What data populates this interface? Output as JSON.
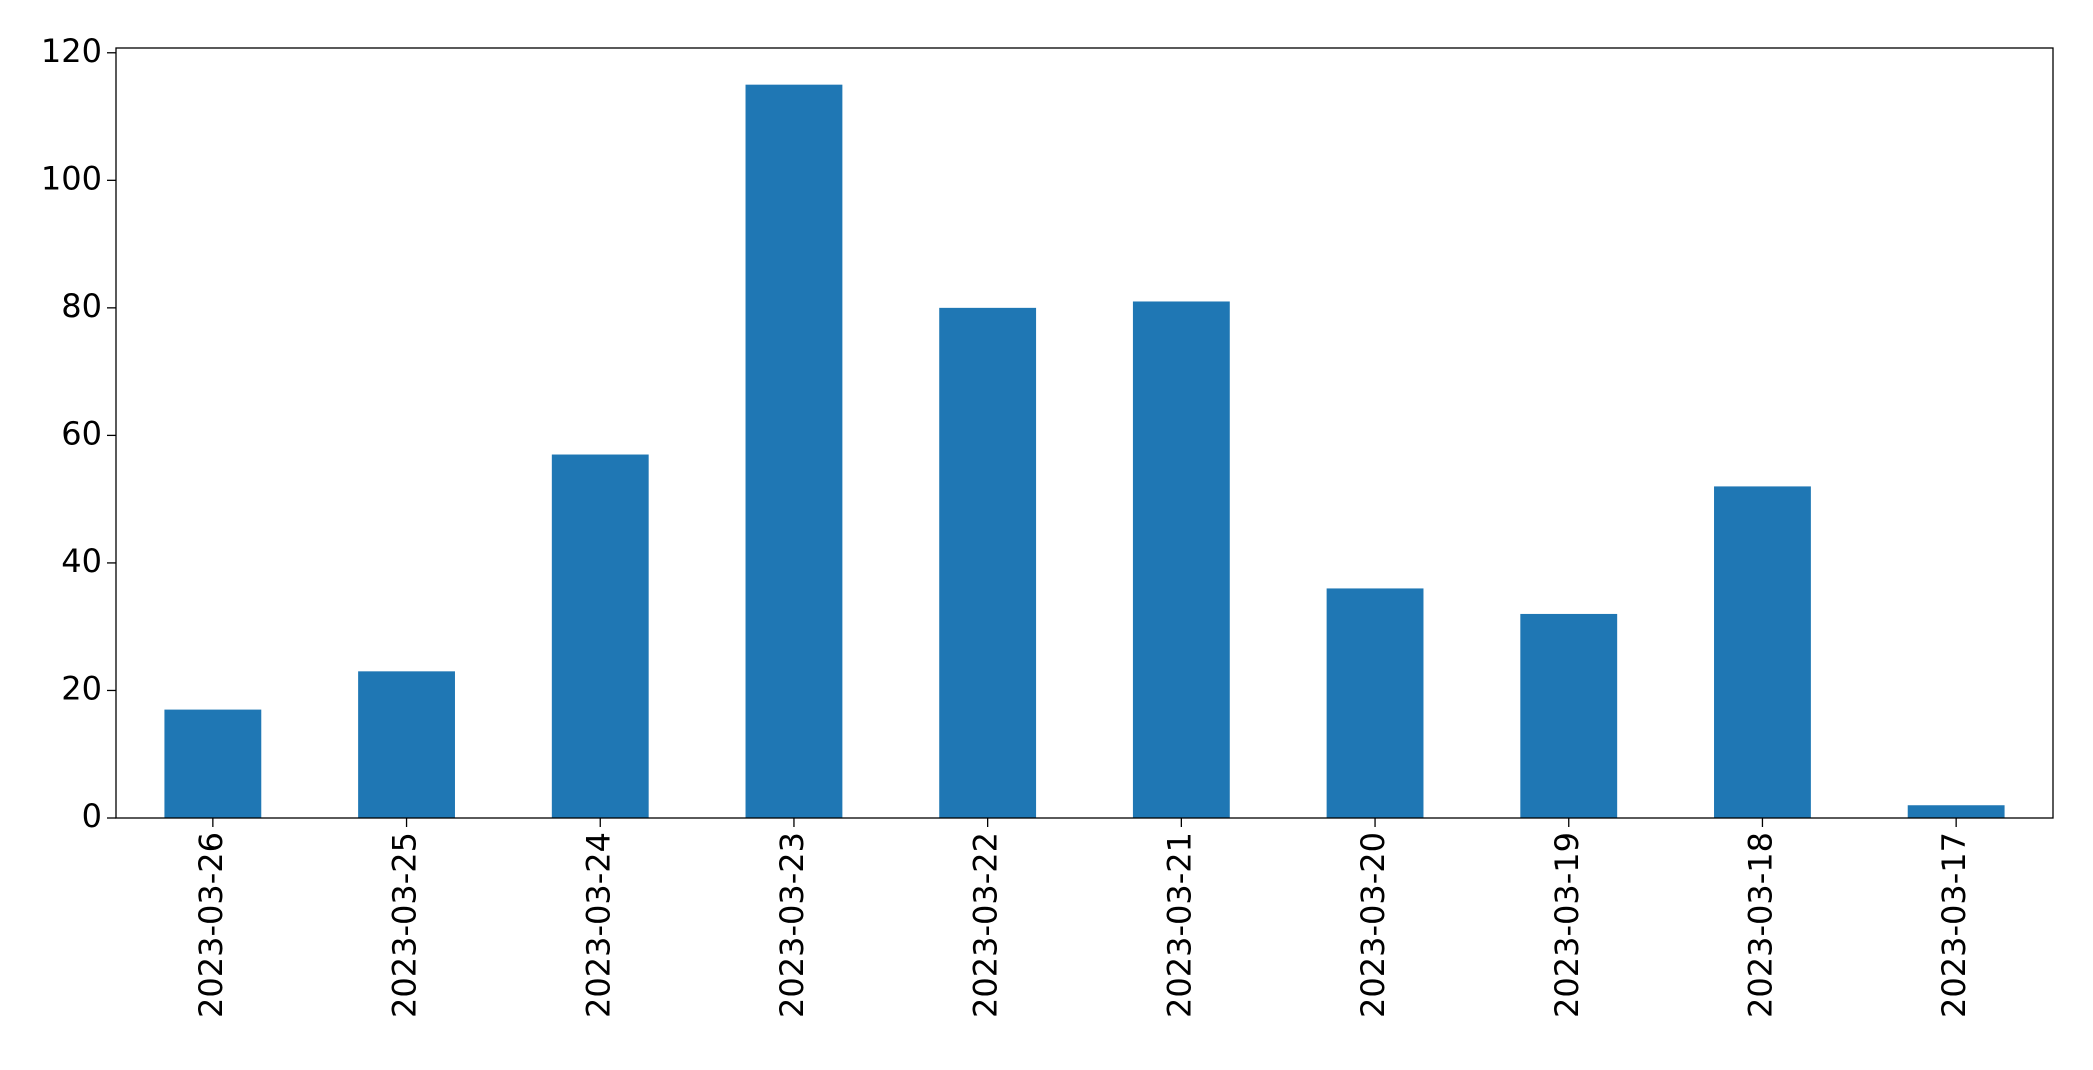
{
  "chart_data": {
    "type": "bar",
    "categories": [
      "2023-03-26",
      "2023-03-25",
      "2023-03-24",
      "2023-03-23",
      "2023-03-22",
      "2023-03-21",
      "2023-03-20",
      "2023-03-19",
      "2023-03-18",
      "2023-03-17"
    ],
    "values": [
      17,
      23,
      57,
      115,
      80,
      81,
      36,
      32,
      52,
      2
    ],
    "color": "#1f77b4",
    "ylim": [
      0,
      120.75
    ],
    "yticks": [
      0,
      20,
      40,
      60,
      80,
      100,
      120
    ],
    "grid": false
  }
}
